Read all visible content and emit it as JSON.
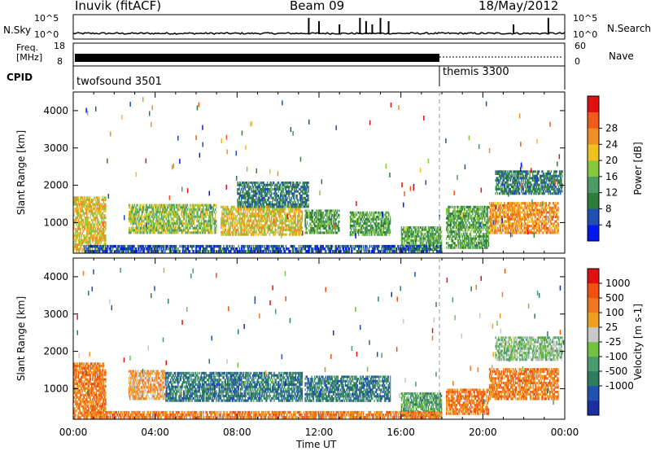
{
  "header": {
    "station": "Inuvik (fitACF)",
    "beam": "Beam 09",
    "date": "18/May/2012"
  },
  "summary_panel": {
    "nsky_label": "N.Sky",
    "nsearch_label": "N.Search",
    "noise_ticks_left": [
      "10^5",
      "10^0"
    ],
    "noise_ticks_right": [
      "10^5",
      "10^0"
    ],
    "freq_label": "Freq.",
    "freq_unit": "[MHz]",
    "freq_ticks": [
      "18",
      "8"
    ],
    "nave_label": "Nave",
    "nave_ticks": [
      "60",
      "0"
    ],
    "cpid_label": "CPID",
    "cpid_modes": [
      {
        "name": "twofsound 3501",
        "start_hour": 0.0,
        "end_hour": 18.0
      },
      {
        "name": "themis 3300",
        "start_hour": 18.0,
        "end_hour": 24.0
      }
    ]
  },
  "chart_data": [
    {
      "type": "heatmap",
      "title": "",
      "quantity": "Power",
      "xlabel": "Time UT",
      "ylabel": "Slant Range [km]",
      "xlim_hours": [
        0,
        24
      ],
      "xticks": [
        "00:00",
        "04:00",
        "08:00",
        "12:00",
        "16:00",
        "20:00",
        "00:00"
      ],
      "ylim": [
        180,
        4500
      ],
      "yticks": [
        1000,
        2000,
        3000,
        4000
      ],
      "colorbar": {
        "label": "Power [dB]",
        "ticks": [
          "4",
          "8",
          "12",
          "16",
          "20",
          "24",
          "28"
        ],
        "colors": [
          "#0018f0",
          "#1f4fb0",
          "#2e7d3c",
          "#4c9a64",
          "#86c83c",
          "#f0c020",
          "#f08e28",
          "#f05a1a",
          "#e01010"
        ]
      },
      "echo_regions": [
        {
          "t0": 0.0,
          "t1": 1.6,
          "r0": 200,
          "r1": 1700,
          "level": 5
        },
        {
          "t0": 2.7,
          "t1": 7.0,
          "r0": 700,
          "r1": 1500,
          "level": 4
        },
        {
          "t0": 7.2,
          "t1": 11.2,
          "r0": 650,
          "r1": 1450,
          "level": 5
        },
        {
          "t0": 11.3,
          "t1": 13.0,
          "r0": 700,
          "r1": 1350,
          "level": 3
        },
        {
          "t0": 13.5,
          "t1": 15.5,
          "r0": 650,
          "r1": 1300,
          "level": 3
        },
        {
          "t0": 16.0,
          "t1": 18.0,
          "r0": 250,
          "r1": 900,
          "level": 3
        },
        {
          "t0": 18.2,
          "t1": 20.3,
          "r0": 300,
          "r1": 1450,
          "level": 3
        },
        {
          "t0": 20.3,
          "t1": 23.7,
          "r0": 700,
          "r1": 1550,
          "level": 6
        },
        {
          "t0": 20.6,
          "t1": 23.9,
          "r0": 1750,
          "r1": 2400,
          "level": 2
        },
        {
          "t0": 8.0,
          "t1": 11.5,
          "r0": 1400,
          "r1": 2100,
          "level": 2
        },
        {
          "t0": 0.5,
          "t1": 18.0,
          "r0": 200,
          "r1": 400,
          "level": 1
        }
      ]
    },
    {
      "type": "heatmap",
      "title": "",
      "quantity": "Velocity",
      "xlabel": "Time UT",
      "ylabel": "Slant Range [km]",
      "xlim_hours": [
        0,
        24
      ],
      "xticks": [
        "00:00",
        "04:00",
        "08:00",
        "12:00",
        "16:00",
        "20:00",
        "00:00"
      ],
      "ylim": [
        180,
        4500
      ],
      "yticks": [
        1000,
        2000,
        3000,
        4000
      ],
      "colorbar": {
        "label": "Velocity [m s-1]",
        "ticks": [
          "1000",
          "500",
          "100",
          "25",
          "-25",
          "-100",
          "-500",
          "-1000"
        ],
        "colors": [
          "#1c2fa0",
          "#2050b0",
          "#2e7d5e",
          "#4a9c6e",
          "#74c040",
          "#c8c8c8",
          "#f0a020",
          "#f07820",
          "#f05010",
          "#e01010"
        ]
      },
      "echo_regions": [
        {
          "t0": 0.0,
          "t1": 1.6,
          "r0": 200,
          "r1": 1700,
          "level": 7
        },
        {
          "t0": 2.7,
          "t1": 4.5,
          "r0": 700,
          "r1": 1500,
          "level": 6
        },
        {
          "t0": 4.5,
          "t1": 11.2,
          "r0": 650,
          "r1": 1450,
          "level": 2
        },
        {
          "t0": 11.3,
          "t1": 15.5,
          "r0": 650,
          "r1": 1350,
          "level": 2
        },
        {
          "t0": 16.0,
          "t1": 18.0,
          "r0": 250,
          "r1": 900,
          "level": 3
        },
        {
          "t0": 18.2,
          "t1": 20.3,
          "r0": 300,
          "r1": 1000,
          "level": 7
        },
        {
          "t0": 20.3,
          "t1": 23.7,
          "r0": 700,
          "r1": 1550,
          "level": 7
        },
        {
          "t0": 20.6,
          "t1": 23.9,
          "r0": 1750,
          "r1": 2400,
          "level": 4
        },
        {
          "t0": 0.5,
          "t1": 18.0,
          "r0": 200,
          "r1": 400,
          "level": 7
        }
      ]
    }
  ]
}
